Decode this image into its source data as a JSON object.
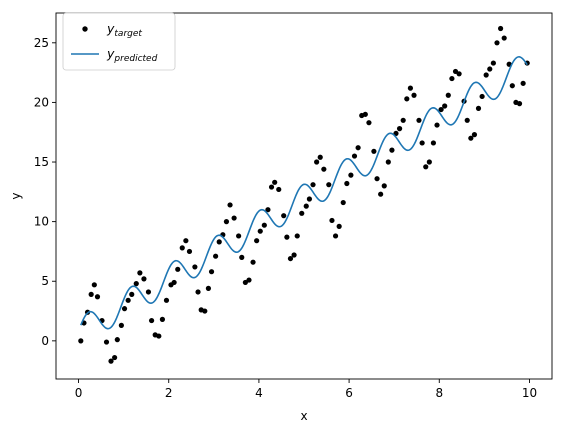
{
  "chart_data": {
    "type": "scatter",
    "xlabel": "x",
    "ylabel": "y",
    "xlim": [
      -0.5,
      10.5
    ],
    "ylim": [
      -3.2,
      27.5
    ],
    "xticks": [
      0,
      2,
      4,
      6,
      8,
      10
    ],
    "xtick_labels": [
      "0",
      "2",
      "4",
      "6",
      "8",
      "10"
    ],
    "yticks": [
      0,
      5,
      10,
      15,
      20,
      25
    ],
    "ytick_labels": [
      "0",
      "5",
      "10",
      "15",
      "20",
      "25"
    ],
    "grid": false,
    "legend": {
      "placement": "top-left",
      "target": {
        "base": "y",
        "sub": "target"
      },
      "predicted": {
        "base": "y",
        "sub": "predicted"
      }
    },
    "series": [
      {
        "kind": "scatter",
        "color": "#000000",
        "points": [
          [
            0.05,
            0.0
          ],
          [
            0.12,
            1.5
          ],
          [
            0.2,
            2.4
          ],
          [
            0.28,
            3.9
          ],
          [
            0.35,
            4.7
          ],
          [
            0.42,
            3.7
          ],
          [
            0.52,
            1.7
          ],
          [
            0.62,
            -0.1
          ],
          [
            0.72,
            -1.7
          ],
          [
            0.8,
            -1.4
          ],
          [
            0.86,
            0.1
          ],
          [
            0.95,
            1.3
          ],
          [
            1.02,
            2.7
          ],
          [
            1.1,
            3.4
          ],
          [
            1.18,
            3.9
          ],
          [
            1.28,
            4.8
          ],
          [
            1.36,
            5.7
          ],
          [
            1.45,
            5.2
          ],
          [
            1.55,
            4.1
          ],
          [
            1.62,
            1.7
          ],
          [
            1.7,
            0.5
          ],
          [
            1.78,
            0.4
          ],
          [
            1.86,
            1.8
          ],
          [
            1.95,
            3.4
          ],
          [
            2.05,
            4.7
          ],
          [
            2.12,
            4.9
          ],
          [
            2.2,
            6.0
          ],
          [
            2.3,
            7.8
          ],
          [
            2.38,
            8.4
          ],
          [
            2.46,
            7.5
          ],
          [
            2.58,
            6.2
          ],
          [
            2.65,
            4.1
          ],
          [
            2.72,
            2.6
          ],
          [
            2.8,
            2.5
          ],
          [
            2.88,
            4.4
          ],
          [
            2.95,
            5.8
          ],
          [
            3.04,
            7.1
          ],
          [
            3.12,
            8.3
          ],
          [
            3.2,
            8.9
          ],
          [
            3.28,
            10.0
          ],
          [
            3.36,
            11.4
          ],
          [
            3.45,
            10.3
          ],
          [
            3.55,
            8.8
          ],
          [
            3.62,
            7.0
          ],
          [
            3.7,
            4.9
          ],
          [
            3.78,
            5.1
          ],
          [
            3.87,
            6.6
          ],
          [
            3.95,
            8.4
          ],
          [
            4.03,
            9.2
          ],
          [
            4.12,
            9.7
          ],
          [
            4.2,
            11.0
          ],
          [
            4.28,
            12.9
          ],
          [
            4.35,
            13.3
          ],
          [
            4.44,
            12.7
          ],
          [
            4.55,
            10.5
          ],
          [
            4.62,
            8.7
          ],
          [
            4.7,
            6.9
          ],
          [
            4.78,
            7.2
          ],
          [
            4.85,
            8.8
          ],
          [
            4.95,
            10.7
          ],
          [
            5.05,
            11.3
          ],
          [
            5.12,
            11.9
          ],
          [
            5.2,
            13.1
          ],
          [
            5.28,
            15.0
          ],
          [
            5.36,
            15.4
          ],
          [
            5.44,
            14.4
          ],
          [
            5.55,
            13.1
          ],
          [
            5.62,
            10.1
          ],
          [
            5.7,
            8.8
          ],
          [
            5.78,
            9.6
          ],
          [
            5.87,
            11.6
          ],
          [
            5.95,
            13.2
          ],
          [
            6.04,
            13.9
          ],
          [
            6.12,
            15.5
          ],
          [
            6.2,
            16.2
          ],
          [
            6.28,
            18.9
          ],
          [
            6.36,
            19.0
          ],
          [
            6.44,
            18.3
          ],
          [
            6.55,
            15.9
          ],
          [
            6.62,
            13.6
          ],
          [
            6.7,
            12.3
          ],
          [
            6.78,
            13.0
          ],
          [
            6.87,
            15.0
          ],
          [
            6.95,
            16.0
          ],
          [
            7.04,
            17.4
          ],
          [
            7.12,
            17.8
          ],
          [
            7.2,
            18.5
          ],
          [
            7.28,
            20.3
          ],
          [
            7.36,
            21.2
          ],
          [
            7.44,
            20.6
          ],
          [
            7.55,
            18.5
          ],
          [
            7.62,
            16.6
          ],
          [
            7.7,
            14.6
          ],
          [
            7.78,
            15.0
          ],
          [
            7.87,
            16.6
          ],
          [
            7.95,
            18.1
          ],
          [
            8.04,
            19.4
          ],
          [
            8.12,
            19.7
          ],
          [
            8.2,
            20.6
          ],
          [
            8.28,
            22.0
          ],
          [
            8.36,
            22.6
          ],
          [
            8.44,
            22.4
          ],
          [
            8.55,
            20.1
          ],
          [
            8.62,
            18.5
          ],
          [
            8.7,
            17.0
          ],
          [
            8.78,
            17.3
          ],
          [
            8.87,
            19.5
          ],
          [
            8.95,
            20.5
          ],
          [
            9.04,
            22.3
          ],
          [
            9.12,
            22.8
          ],
          [
            9.2,
            23.3
          ],
          [
            9.28,
            25.0
          ],
          [
            9.36,
            26.2
          ],
          [
            9.44,
            25.4
          ],
          [
            9.55,
            23.2
          ],
          [
            9.62,
            21.4
          ],
          [
            9.7,
            20.0
          ],
          [
            9.78,
            19.9
          ],
          [
            9.86,
            21.6
          ],
          [
            9.95,
            23.3
          ]
        ]
      },
      {
        "kind": "line",
        "color": "#1f77b4",
        "model": {
          "slope": 2.25,
          "intercept": 0.7,
          "amplitude": 1.2,
          "period": 0.95,
          "phase": 0.1
        }
      }
    ]
  }
}
